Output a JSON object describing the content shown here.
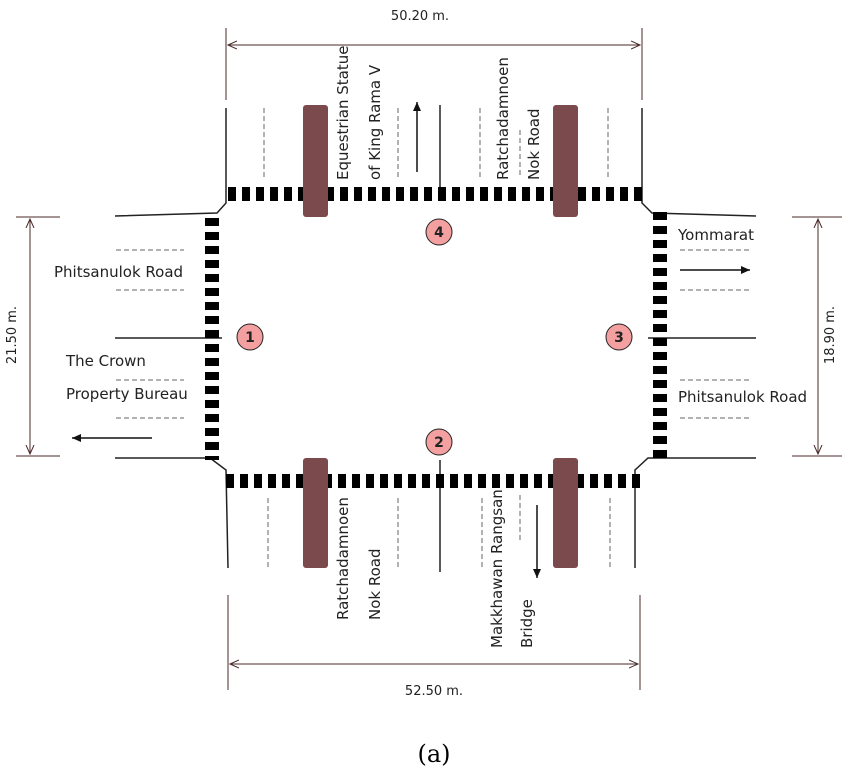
{
  "dimensions": {
    "top": "50.20 m.",
    "bottom": "52.50 m.",
    "left": "21.50 m.",
    "right": "18.90 m."
  },
  "labels": {
    "equestrian_1": "Equestrian Statue",
    "equestrian_2": "of King Rama V",
    "ratchadamnoen_top_1": "Ratchadamnoen",
    "ratchadamnoen_top_2": "Nok Road",
    "phitsanulok_west": "Phitsanulok Road",
    "crown_1": "The Crown",
    "crown_2": "Property Bureau",
    "yommarat": "Yommarat",
    "phitsanulok_east": "Phitsanulok Road",
    "ratchadamnoen_bottom_1": "Ratchadamnoen",
    "ratchadamnoen_bottom_2": "Nok Road",
    "makkhawan_1": "Makkhawan Rangsan",
    "makkhawan_2": "Bridge"
  },
  "markers": [
    "1",
    "2",
    "3",
    "4"
  ],
  "caption": "(a)",
  "colors": {
    "island": "#7a4a4c",
    "marker_fill": "#f4a0a0",
    "line": "#222222"
  }
}
